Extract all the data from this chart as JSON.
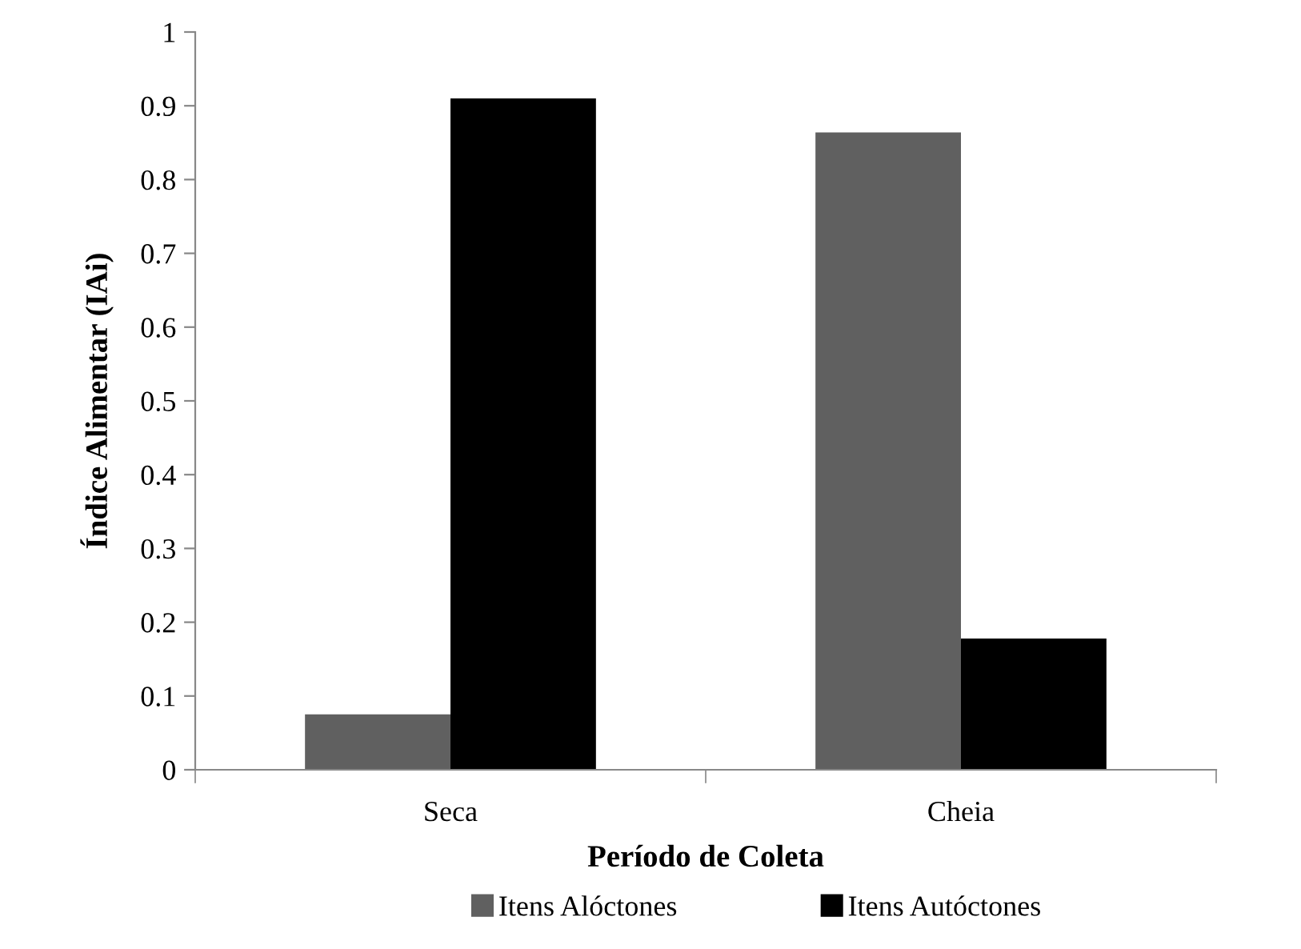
{
  "chart_data": {
    "type": "bar",
    "xlabel": "Período de Coleta",
    "ylabel": "Índice Alimentar (IAi)",
    "categories": [
      "Seca",
      "Cheia"
    ],
    "series": [
      {
        "name": "Itens Alóctones",
        "color": "#606060",
        "values": [
          0.075,
          0.864
        ]
      },
      {
        "name": "Itens Autóctones",
        "color": "#000000",
        "values": [
          0.91,
          0.178
        ]
      }
    ],
    "ylim": [
      0,
      1
    ],
    "yticks": [
      0,
      0.1,
      0.2,
      0.3,
      0.4,
      0.5,
      0.6,
      0.7,
      0.8,
      0.9,
      1
    ],
    "grid": false,
    "legend": "bottom"
  }
}
